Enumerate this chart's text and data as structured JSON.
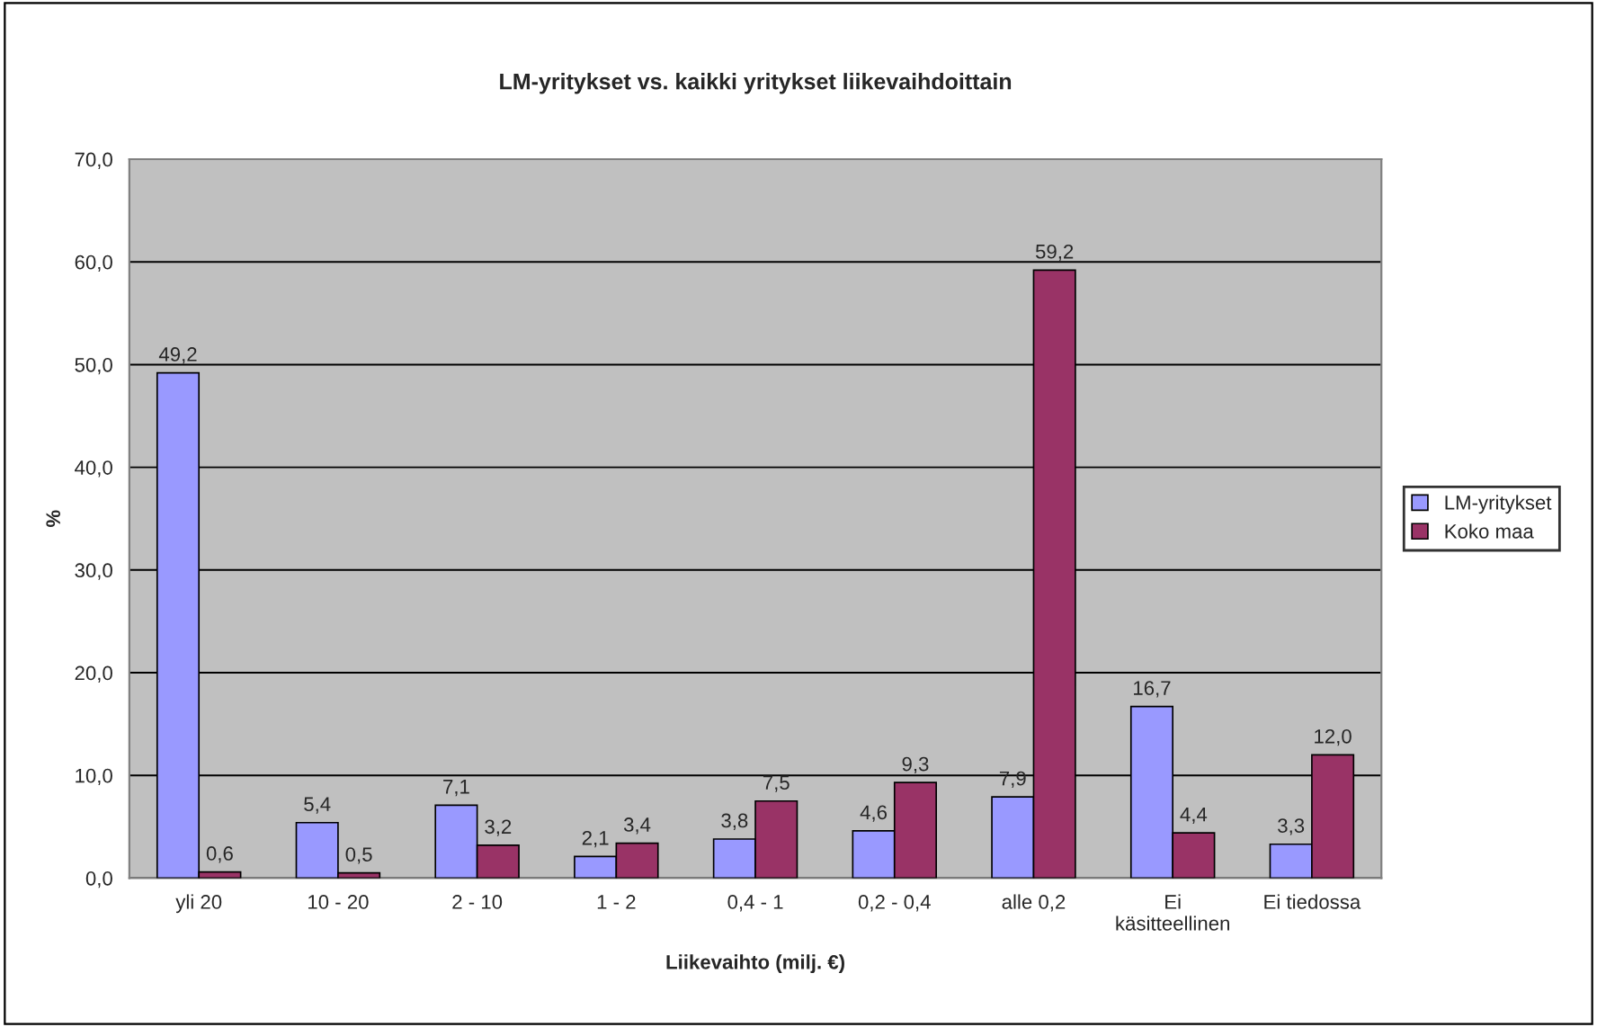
{
  "chart_data": {
    "type": "bar",
    "title": "LM-yritykset vs. kaikki yritykset liikevaihdoittain",
    "xlabel": "Liikevaihto (milj. €)",
    "ylabel": "%",
    "categories": [
      "yli 20",
      "10 - 20",
      "2 - 10",
      "1 - 2",
      "0,4 - 1",
      "0,2 - 0,4",
      "alle 0,2",
      "Ei käsitteellinen",
      "Ei tiedossa"
    ],
    "series": [
      {
        "name": "LM-yritykset",
        "color": "#9999ff",
        "values": [
          49.2,
          5.4,
          7.1,
          2.1,
          3.8,
          4.6,
          7.9,
          16.7,
          3.3
        ],
        "value_labels": [
          "49,2",
          "5,4",
          "7,1",
          "2,1",
          "3,8",
          "4,6",
          "7,9",
          "16,7",
          "3,3"
        ]
      },
      {
        "name": "Koko maa",
        "color": "#993366",
        "values": [
          0.6,
          0.5,
          3.2,
          3.4,
          7.5,
          9.3,
          59.2,
          4.4,
          12.0
        ],
        "value_labels": [
          "0,6",
          "0,5",
          "3,2",
          "3,4",
          "7,5",
          "9,3",
          "59,2",
          "4,4",
          "12,0"
        ]
      }
    ],
    "ylim": [
      0,
      70
    ],
    "yticks": [
      {
        "value": 0,
        "label": "0,0"
      },
      {
        "value": 10,
        "label": "10,0"
      },
      {
        "value": 20,
        "label": "20,0"
      },
      {
        "value": 30,
        "label": "30,0"
      },
      {
        "value": 40,
        "label": "40,0"
      },
      {
        "value": 50,
        "label": "50,0"
      },
      {
        "value": 60,
        "label": "60,0"
      },
      {
        "value": 70,
        "label": "70,0"
      }
    ],
    "grid": "y",
    "legend": "right"
  }
}
